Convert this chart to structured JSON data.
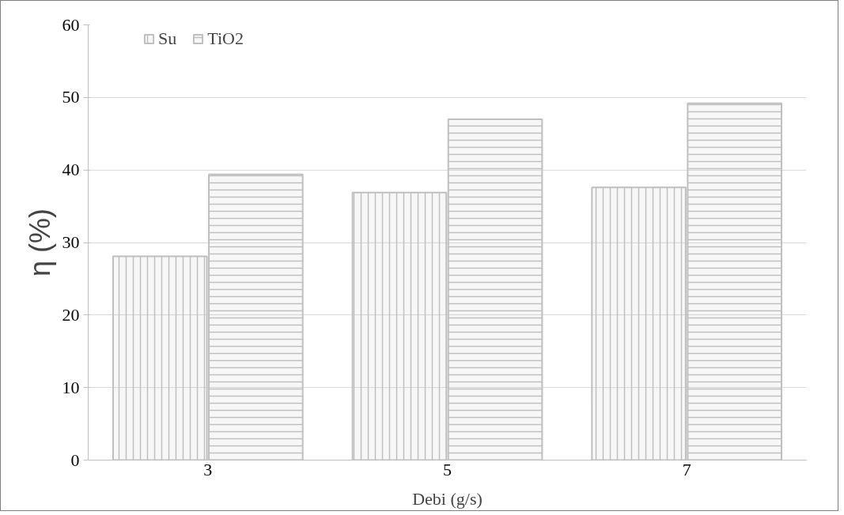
{
  "chart_data": {
    "type": "bar",
    "xlabel": "Debi (g/s)",
    "ylabel": "η (%)",
    "categories": [
      "3",
      "5",
      "7"
    ],
    "series": [
      {
        "name": "Su",
        "color": "#bfbfbf",
        "values": [
          28.1,
          36.9,
          37.6
        ]
      },
      {
        "name": "TiO2",
        "color": "#bfbfbf",
        "values": [
          39.4,
          47.0,
          49.2
        ]
      }
    ],
    "ylim": [
      0,
      60
    ],
    "yticks": [
      0,
      10,
      20,
      30,
      40,
      50,
      60
    ],
    "grid": "y",
    "legend": "top left"
  }
}
